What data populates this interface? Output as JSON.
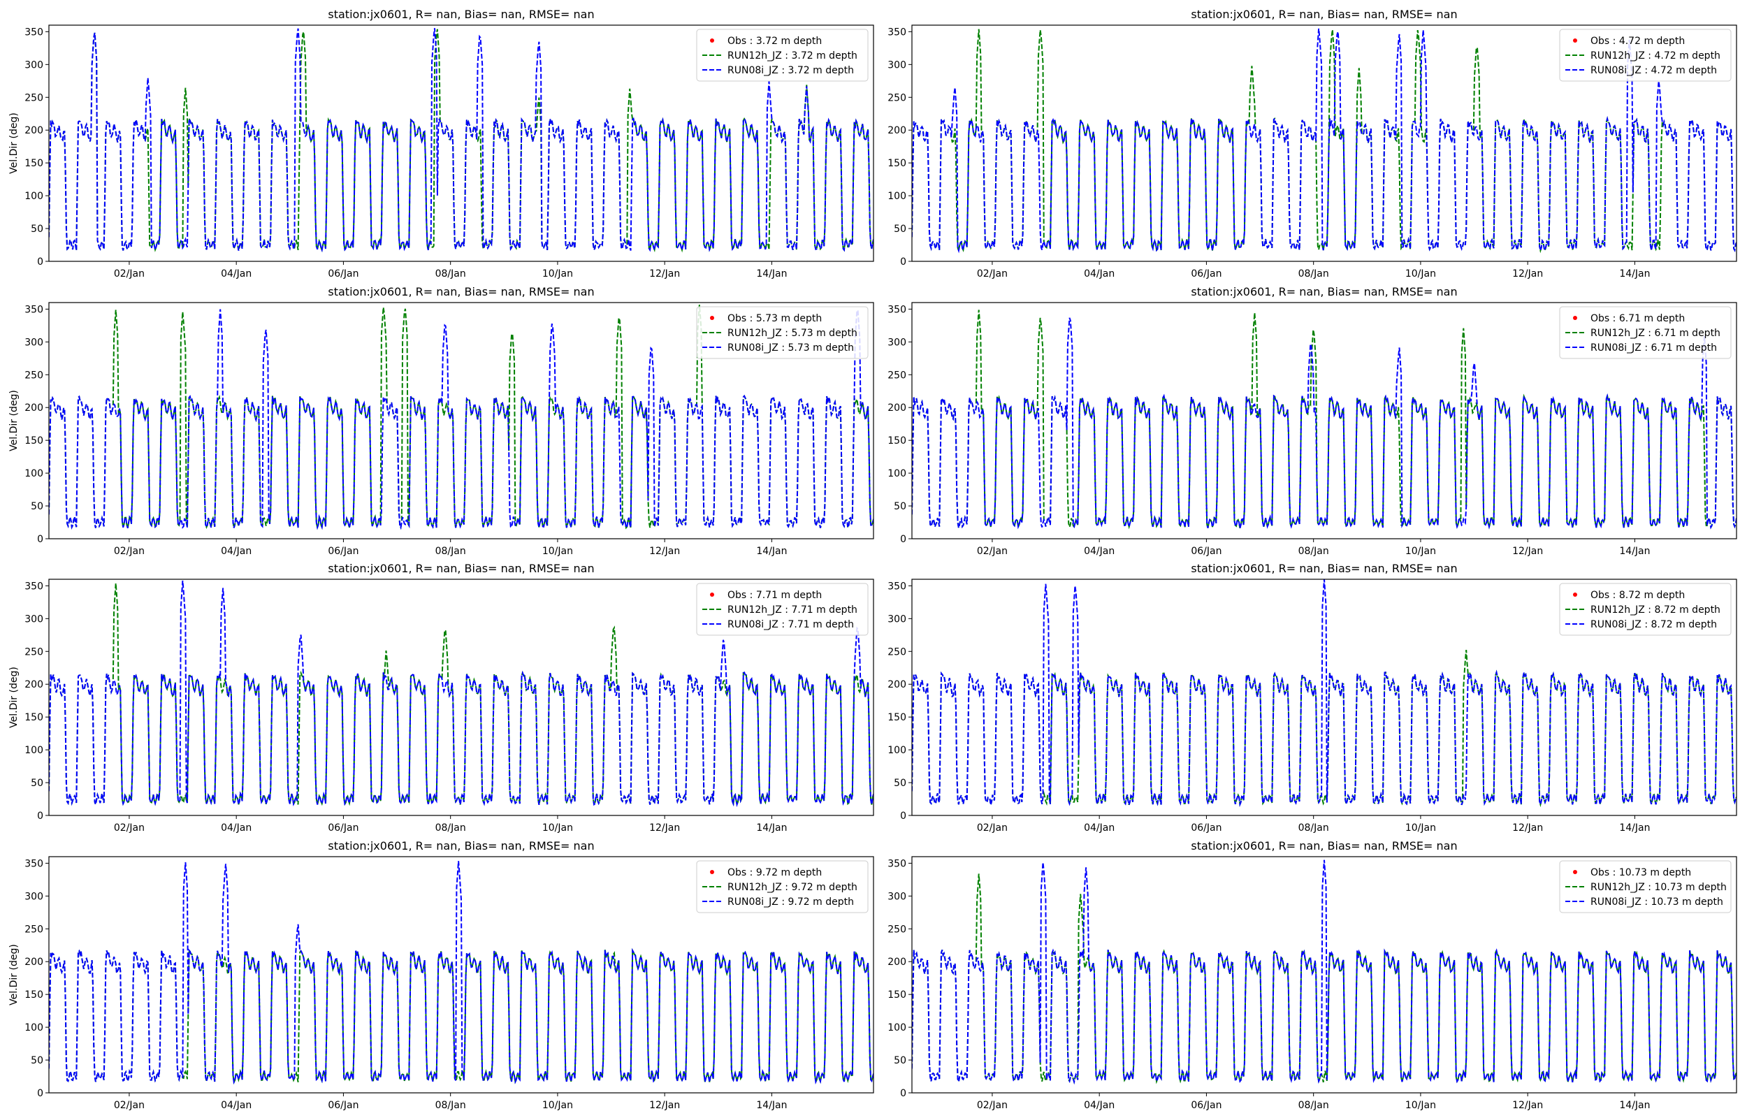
{
  "colors": {
    "obs": "#ff0000",
    "run12h": "#008000",
    "run08i": "#0000ff",
    "axis": "#000000",
    "legend_border": "#cccccc"
  },
  "chart_data": [
    {
      "type": "line",
      "title": "station:jx0601, R=   nan, Bias=    nan, RMSE=    nan",
      "xlabel": "",
      "ylabel": "Vel.Dir (deg)",
      "xlim": [
        0.5,
        15.9
      ],
      "ylim": [
        0,
        360
      ],
      "xticks": [
        2,
        4,
        6,
        8,
        10,
        12,
        14
      ],
      "xtick_labels": [
        "02/Jan",
        "04/Jan",
        "06/Jan",
        "08/Jan",
        "10/Jan",
        "12/Jan",
        "14/Jan"
      ],
      "yticks": [
        0,
        50,
        100,
        150,
        200,
        250,
        300,
        350
      ],
      "ytick_labels": [
        "0",
        "50",
        "100",
        "150",
        "200",
        "250",
        "300",
        "350"
      ],
      "legend_position": "top-right",
      "legend": [
        "Obs : 3.72 m depth",
        "RUN12h_JZ : 3.72 m depth",
        "RUN08i_JZ : 3.72 m depth"
      ],
      "series_model": {
        "cycle_days": 0.5175,
        "phase": 0.55,
        "spikes_run12h": [
          [
            1.35,
            355
          ],
          [
            3.05,
            265
          ],
          [
            5.25,
            358
          ],
          [
            7.75,
            360
          ],
          [
            9.65,
            255
          ],
          [
            11.35,
            265
          ],
          [
            14.65,
            270
          ]
        ],
        "spikes_run08i": [
          [
            1.35,
            355
          ],
          [
            2.35,
            282
          ],
          [
            5.15,
            360
          ],
          [
            7.7,
            360
          ],
          [
            8.55,
            352
          ],
          [
            9.65,
            340
          ],
          [
            13.95,
            275
          ],
          [
            14.65,
            268
          ]
        ]
      }
    },
    {
      "type": "line",
      "title": "station:jx0601, R=   nan, Bias=    nan, RMSE=    nan",
      "xlabel": "",
      "ylabel": "",
      "xlim": [
        0.5,
        15.9
      ],
      "ylim": [
        0,
        360
      ],
      "xticks": [
        2,
        4,
        6,
        8,
        10,
        12,
        14
      ],
      "xtick_labels": [
        "02/Jan",
        "04/Jan",
        "06/Jan",
        "08/Jan",
        "10/Jan",
        "12/Jan",
        "14/Jan"
      ],
      "yticks": [
        0,
        50,
        100,
        150,
        200,
        250,
        300,
        350
      ],
      "ytick_labels": [
        "0",
        "50",
        "100",
        "150",
        "200",
        "250",
        "300",
        "350"
      ],
      "legend_position": "top-right",
      "legend": [
        "Obs : 4.72 m depth",
        "RUN12h_JZ : 4.72 m depth",
        "RUN08i_JZ : 4.72 m depth"
      ],
      "series_model": {
        "cycle_days": 0.5175,
        "phase": 0.55,
        "spikes_run12h": [
          [
            1.75,
            355
          ],
          [
            2.9,
            358
          ],
          [
            6.85,
            300
          ],
          [
            8.35,
            358
          ],
          [
            8.85,
            295
          ],
          [
            9.95,
            358
          ],
          [
            11.05,
            335
          ]
        ],
        "spikes_run08i": [
          [
            1.3,
            270
          ],
          [
            8.1,
            358
          ],
          [
            8.45,
            358
          ],
          [
            9.6,
            350
          ],
          [
            10.05,
            355
          ],
          [
            13.9,
            340
          ],
          [
            14.45,
            280
          ]
        ]
      }
    },
    {
      "type": "line",
      "title": "station:jx0601, R=   nan, Bias=    nan, RMSE=    nan",
      "xlabel": "",
      "ylabel": "Vel.Dir (deg)",
      "xlim": [
        0.5,
        15.9
      ],
      "ylim": [
        0,
        360
      ],
      "xticks": [
        2,
        4,
        6,
        8,
        10,
        12,
        14
      ],
      "xtick_labels": [
        "02/Jan",
        "04/Jan",
        "06/Jan",
        "08/Jan",
        "10/Jan",
        "12/Jan",
        "14/Jan"
      ],
      "yticks": [
        0,
        50,
        100,
        150,
        200,
        250,
        300,
        350
      ],
      "ytick_labels": [
        "0",
        "50",
        "100",
        "150",
        "200",
        "250",
        "300",
        "350"
      ],
      "legend_position": "top-right",
      "legend": [
        "Obs : 5.73 m depth",
        "RUN12h_JZ : 5.73 m depth",
        "RUN08i_JZ : 5.73 m depth"
      ],
      "series_model": {
        "cycle_days": 0.5175,
        "phase": 0.55,
        "spikes_run12h": [
          [
            1.75,
            350
          ],
          [
            3.0,
            348
          ],
          [
            6.75,
            358
          ],
          [
            7.15,
            358
          ],
          [
            9.15,
            322
          ],
          [
            11.15,
            345
          ],
          [
            12.65,
            358
          ]
        ],
        "spikes_run08i": [
          [
            3.7,
            350
          ],
          [
            4.55,
            325
          ],
          [
            7.9,
            335
          ],
          [
            9.9,
            335
          ],
          [
            11.75,
            300
          ],
          [
            15.6,
            358
          ]
        ]
      }
    },
    {
      "type": "line",
      "title": "station:jx0601, R=   nan, Bias=    nan, RMSE=    nan",
      "xlabel": "",
      "ylabel": "",
      "xlim": [
        0.5,
        15.9
      ],
      "ylim": [
        0,
        360
      ],
      "xticks": [
        2,
        4,
        6,
        8,
        10,
        12,
        14
      ],
      "xtick_labels": [
        "02/Jan",
        "04/Jan",
        "06/Jan",
        "08/Jan",
        "10/Jan",
        "12/Jan",
        "14/Jan"
      ],
      "yticks": [
        0,
        50,
        100,
        150,
        200,
        250,
        300,
        350
      ],
      "ytick_labels": [
        "0",
        "50",
        "100",
        "150",
        "200",
        "250",
        "300",
        "350"
      ],
      "legend_position": "top-right",
      "legend": [
        "Obs : 6.71 m depth",
        "RUN12h_JZ : 6.71 m depth",
        "RUN08i_JZ : 6.71 m depth"
      ],
      "series_model": {
        "cycle_days": 0.5175,
        "phase": 0.55,
        "spikes_run12h": [
          [
            1.75,
            350
          ],
          [
            2.9,
            342
          ],
          [
            6.9,
            345
          ],
          [
            8.0,
            325
          ],
          [
            10.8,
            322
          ]
        ],
        "spikes_run08i": [
          [
            3.45,
            345
          ],
          [
            7.95,
            305
          ],
          [
            9.6,
            295
          ],
          [
            11.0,
            275
          ],
          [
            15.3,
            310
          ]
        ]
      }
    },
    {
      "type": "line",
      "title": "station:jx0601, R=   nan, Bias=    nan, RMSE=    nan",
      "xlabel": "",
      "ylabel": "Vel.Dir (deg)",
      "xlim": [
        0.5,
        15.9
      ],
      "ylim": [
        0,
        360
      ],
      "xticks": [
        2,
        4,
        6,
        8,
        10,
        12,
        14
      ],
      "xtick_labels": [
        "02/Jan",
        "04/Jan",
        "06/Jan",
        "08/Jan",
        "10/Jan",
        "12/Jan",
        "14/Jan"
      ],
      "yticks": [
        0,
        50,
        100,
        150,
        200,
        250,
        300,
        350
      ],
      "ytick_labels": [
        "0",
        "50",
        "100",
        "150",
        "200",
        "250",
        "300",
        "350"
      ],
      "legend_position": "top-right",
      "legend": [
        "Obs : 7.71 m depth",
        "RUN12h_JZ : 7.71 m depth",
        "RUN08i_JZ : 7.71 m depth"
      ],
      "series_model": {
        "cycle_days": 0.5175,
        "phase": 0.55,
        "spikes_run12h": [
          [
            1.75,
            355
          ],
          [
            6.8,
            255
          ],
          [
            7.9,
            292
          ],
          [
            11.05,
            295
          ]
        ],
        "spikes_run08i": [
          [
            3.0,
            360
          ],
          [
            3.75,
            348
          ],
          [
            5.2,
            282
          ],
          [
            13.1,
            275
          ],
          [
            15.6,
            295
          ]
        ]
      }
    },
    {
      "type": "line",
      "title": "station:jx0601, R=   nan, Bias=    nan, RMSE=    nan",
      "xlabel": "",
      "ylabel": "",
      "xlim": [
        0.5,
        15.9
      ],
      "ylim": [
        0,
        360
      ],
      "xticks": [
        2,
        4,
        6,
        8,
        10,
        12,
        14
      ],
      "xtick_labels": [
        "02/Jan",
        "04/Jan",
        "06/Jan",
        "08/Jan",
        "10/Jan",
        "12/Jan",
        "14/Jan"
      ],
      "yticks": [
        0,
        50,
        100,
        150,
        200,
        250,
        300,
        350
      ],
      "ytick_labels": [
        "0",
        "50",
        "100",
        "150",
        "200",
        "250",
        "300",
        "350"
      ],
      "legend_position": "top-right",
      "legend": [
        "Obs : 8.72 m depth",
        "RUN12h_JZ : 8.72 m depth",
        "RUN08i_JZ : 8.72 m depth"
      ],
      "series_model": {
        "cycle_days": 0.5175,
        "phase": 0.55,
        "spikes_run12h": [
          [
            10.85,
            255
          ]
        ],
        "spikes_run08i": [
          [
            3.0,
            355
          ],
          [
            3.55,
            355
          ],
          [
            8.2,
            360
          ]
        ]
      }
    },
    {
      "type": "line",
      "title": "station:jx0601, R=   nan, Bias=    nan, RMSE=    nan",
      "xlabel": "",
      "ylabel": "Vel.Dir (deg)",
      "xlim": [
        0.5,
        15.9
      ],
      "ylim": [
        0,
        360
      ],
      "xticks": [
        2,
        4,
        6,
        8,
        10,
        12,
        14
      ],
      "xtick_labels": [
        "02/Jan",
        "04/Jan",
        "06/Jan",
        "08/Jan",
        "10/Jan",
        "12/Jan",
        "14/Jan"
      ],
      "yticks": [
        0,
        50,
        100,
        150,
        200,
        250,
        300,
        350
      ],
      "ytick_labels": [
        "0",
        "50",
        "100",
        "150",
        "200",
        "250",
        "300",
        "350"
      ],
      "legend_position": "top-right",
      "legend": [
        "Obs : 9.72 m depth",
        "RUN12h_JZ : 9.72 m depth",
        "RUN08i_JZ : 9.72 m depth"
      ],
      "series_model": {
        "cycle_days": 0.5175,
        "phase": 0.55,
        "spikes_run12h": [
          [
            11.05,
            222
          ]
        ],
        "spikes_run08i": [
          [
            3.05,
            352
          ],
          [
            3.8,
            352
          ],
          [
            5.15,
            262
          ],
          [
            8.15,
            355
          ]
        ]
      }
    },
    {
      "type": "line",
      "title": "station:jx0601, R=   nan, Bias=    nan, RMSE=    nan",
      "xlabel": "",
      "ylabel": "",
      "xlim": [
        0.5,
        15.9
      ],
      "ylim": [
        0,
        360
      ],
      "xticks": [
        2,
        4,
        6,
        8,
        10,
        12,
        14
      ],
      "xtick_labels": [
        "02/Jan",
        "04/Jan",
        "06/Jan",
        "08/Jan",
        "10/Jan",
        "12/Jan",
        "14/Jan"
      ],
      "yticks": [
        0,
        50,
        100,
        150,
        200,
        250,
        300,
        350
      ],
      "ytick_labels": [
        "0",
        "50",
        "100",
        "150",
        "200",
        "250",
        "300",
        "350"
      ],
      "legend_position": "top-right",
      "legend": [
        "Obs : 10.73 m depth",
        "RUN12h_JZ : 10.73 m depth",
        "RUN08i_JZ : 10.73 m depth"
      ],
      "series_model": {
        "cycle_days": 0.5175,
        "phase": 0.55,
        "spikes_run12h": [
          [
            1.75,
            335
          ],
          [
            3.65,
            305
          ]
        ],
        "spikes_run08i": [
          [
            2.95,
            355
          ],
          [
            3.75,
            345
          ],
          [
            8.2,
            355
          ]
        ]
      }
    }
  ]
}
